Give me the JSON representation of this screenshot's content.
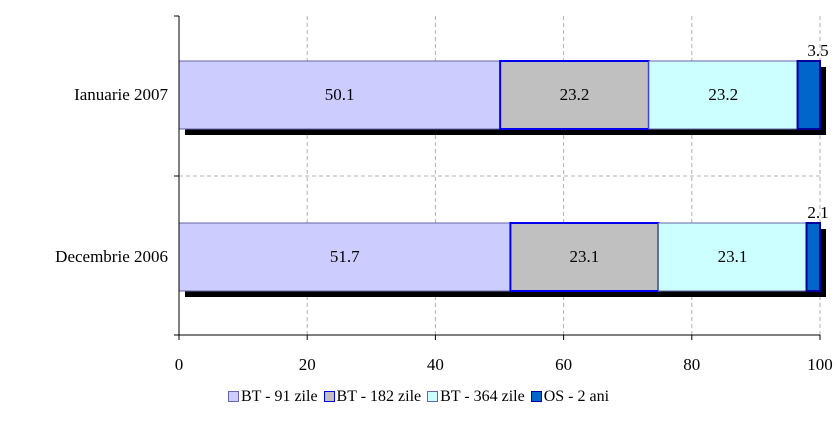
{
  "chart_data": {
    "type": "bar",
    "orientation": "horizontal",
    "stacked": true,
    "categories": [
      "Ianuarie 2007",
      "Decembrie 2006"
    ],
    "series": [
      {
        "name": "BT - 91 zile",
        "values": [
          50.1,
          51.7
        ],
        "labels": [
          "50.1",
          "51.7"
        ],
        "color": "#ccccff",
        "border": "#6666aa"
      },
      {
        "name": "BT - 182 zile",
        "values": [
          23.2,
          23.1
        ],
        "labels": [
          "23.2",
          "23.1"
        ],
        "color": "#c0c0c0",
        "border": "#0000ee"
      },
      {
        "name": "BT - 364 zile",
        "values": [
          23.2,
          23.1
        ],
        "labels": [
          "23.2",
          "23.1"
        ],
        "color": "#ccffff",
        "border": "#6666aa"
      },
      {
        "name": "OS - 2 ani",
        "values": [
          3.5,
          2.1
        ],
        "labels": [
          "3.5",
          "2.1"
        ],
        "color": "#0066cc",
        "border": "#000099"
      }
    ],
    "xlim": [
      0,
      100
    ],
    "xticks": [
      "0",
      "20",
      "40",
      "60",
      "80",
      "100"
    ],
    "grid": "vertical dashed",
    "legend": "bottom",
    "title": "",
    "xlabel": "",
    "ylabel": ""
  }
}
